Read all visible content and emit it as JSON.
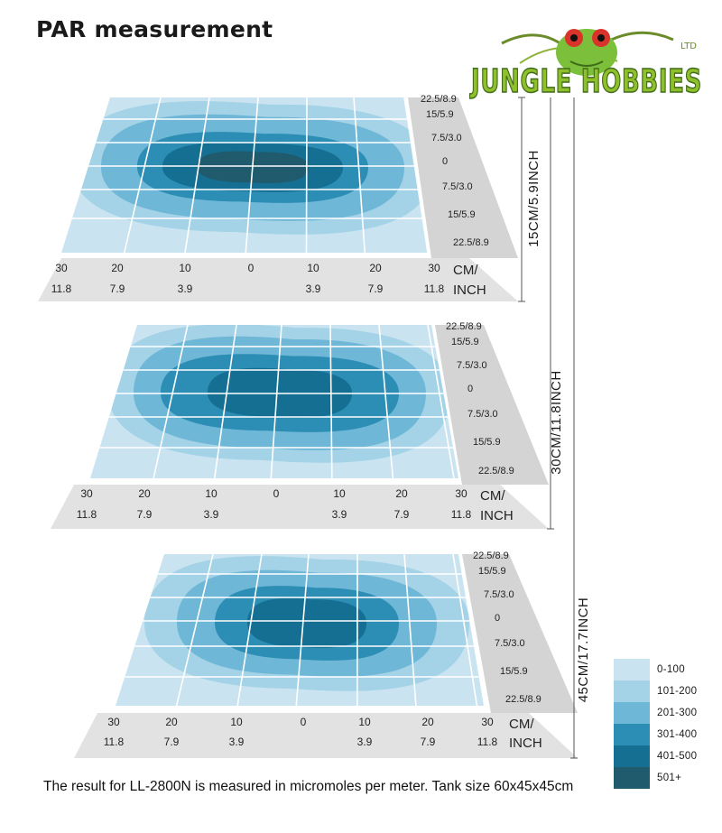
{
  "title": "PAR measurement",
  "logo": {
    "name": "JUNGLE HOBBIES",
    "suffix": "LTD"
  },
  "caption": "The result for LL-2800N is measured in micromoles per meter.  Tank size 60x45x45cm",
  "depth_labels": [
    "15CM/5.9INCH",
    "30CM/11.8INCH",
    "45CM/17.7INCH"
  ],
  "colors": {
    "palette": [
      "#c9e4f0",
      "#a4d2e7",
      "#6fb7d7",
      "#2c8db5",
      "#146f92",
      "#1f5b6c"
    ],
    "grid_line": "#ffffff",
    "axis_band": "#e2e2e2",
    "side_band": "#d4d4d4"
  },
  "chart_data": [
    {
      "type": "heatmap",
      "depth": "15CM/5.9INCH",
      "x_ticks_cm": [
        "30",
        "20",
        "10",
        "0",
        "10",
        "20",
        "30"
      ],
      "x_ticks_inch": [
        "11.8",
        "7.9",
        "3.9",
        "",
        "3.9",
        "7.9",
        "11.8"
      ],
      "x_unit": [
        "CM/",
        "INCH"
      ],
      "y_ticks": [
        "22.5/8.9",
        "15/5.9",
        "7.5/3.0",
        "0",
        "7.5/3.0",
        "15/5.9",
        "22.5/8.9"
      ],
      "legend": [
        "0-100",
        "101-200",
        "201-300",
        "301-400",
        "401-500",
        "501+"
      ],
      "peak_level": 5
    },
    {
      "type": "heatmap",
      "depth": "30CM/11.8INCH",
      "x_ticks_cm": [
        "30",
        "20",
        "10",
        "0",
        "10",
        "20",
        "30"
      ],
      "x_ticks_inch": [
        "11.8",
        "7.9",
        "3.9",
        "",
        "3.9",
        "7.9",
        "11.8"
      ],
      "x_unit": [
        "CM/",
        "INCH"
      ],
      "y_ticks": [
        "22.5/8.9",
        "15/5.9",
        "7.5/3.0",
        "0",
        "7.5/3.0",
        "15/5.9",
        "22.5/8.9"
      ],
      "legend": [
        "0-100",
        "101-200",
        "201-300",
        "301-400",
        "401-500",
        "501+"
      ],
      "peak_level": 4
    },
    {
      "type": "heatmap",
      "depth": "45CM/17.7INCH",
      "x_ticks_cm": [
        "30",
        "20",
        "10",
        "0",
        "10",
        "20",
        "30"
      ],
      "x_ticks_inch": [
        "11.8",
        "7.9",
        "3.9",
        "",
        "3.9",
        "7.9",
        "11.8"
      ],
      "x_unit": [
        "CM/",
        "INCH"
      ],
      "y_ticks": [
        "22.5/8.9",
        "15/5.9",
        "7.5/3.0",
        "0",
        "7.5/3.0",
        "15/5.9",
        "22.5/8.9"
      ],
      "legend": [
        "0-100",
        "101-200",
        "201-300",
        "301-400",
        "401-500",
        "501+"
      ],
      "peak_level": 4
    }
  ],
  "legend": {
    "items": [
      "0-100",
      "101-200",
      "201-300",
      "301-400",
      "401-500",
      "501+"
    ]
  }
}
